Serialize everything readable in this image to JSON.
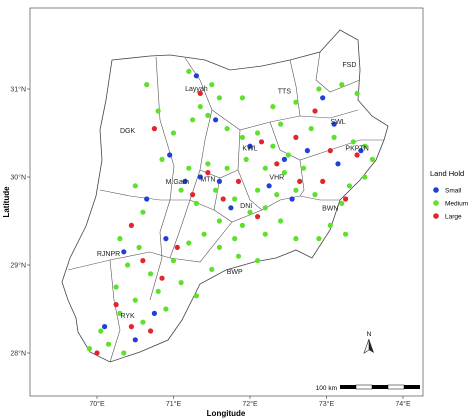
{
  "axes": {
    "x_title": "Longitude",
    "y_title": "Latitude",
    "x_ticks": [
      {
        "value": 70,
        "label": "70°E"
      },
      {
        "value": 71,
        "label": "71°E"
      },
      {
        "value": 72,
        "label": "72°E"
      },
      {
        "value": 73,
        "label": "73°E"
      },
      {
        "value": 74,
        "label": "74°E"
      }
    ],
    "y_ticks": [
      {
        "value": 28,
        "label": "28°N"
      },
      {
        "value": 29,
        "label": "29°N"
      },
      {
        "value": 30,
        "label": "30°N"
      },
      {
        "value": 31,
        "label": "31°N"
      }
    ]
  },
  "regions": [
    {
      "name": "FSD",
      "lon": 73.3,
      "lat": 31.25
    },
    {
      "name": "TTS",
      "lon": 72.45,
      "lat": 30.95
    },
    {
      "name": "Layyah",
      "lon": 71.3,
      "lat": 30.98
    },
    {
      "name": "SWL",
      "lon": 73.15,
      "lat": 30.6
    },
    {
      "name": "DGK",
      "lon": 70.4,
      "lat": 30.5
    },
    {
      "name": "KWL",
      "lon": 72.0,
      "lat": 30.3
    },
    {
      "name": "PKPTN",
      "lon": 73.4,
      "lat": 30.3
    },
    {
      "name": "M.Garh",
      "lon": 71.05,
      "lat": 29.92
    },
    {
      "name": "MTN",
      "lon": 71.45,
      "lat": 29.95
    },
    {
      "name": "VHR",
      "lon": 72.35,
      "lat": 29.97
    },
    {
      "name": "DNI",
      "lon": 71.95,
      "lat": 29.65
    },
    {
      "name": "BWN",
      "lon": 73.05,
      "lat": 29.62
    },
    {
      "name": "RJNPR",
      "lon": 70.15,
      "lat": 29.1
    },
    {
      "name": "BWP",
      "lon": 71.8,
      "lat": 28.9
    },
    {
      "name": "RYK",
      "lon": 70.4,
      "lat": 28.4
    }
  ],
  "legend": {
    "title": "Land Hold",
    "items": [
      {
        "label": "Small",
        "color": "#1f3fd6"
      },
      {
        "label": "Medium",
        "color": "#5ee02c"
      },
      {
        "label": "Large",
        "color": "#e0262c"
      }
    ]
  },
  "scale_bar": {
    "label": "100 km"
  },
  "north_arrow": {
    "label": "N"
  },
  "points": [
    [
      71.2,
      31.2,
      "m"
    ],
    [
      71.5,
      31.05,
      "m"
    ],
    [
      71.35,
      30.8,
      "m"
    ],
    [
      71.6,
      30.9,
      "m"
    ],
    [
      71.25,
      30.65,
      "m"
    ],
    [
      71.45,
      30.7,
      "m"
    ],
    [
      71.7,
      30.55,
      "m"
    ],
    [
      71.9,
      30.9,
      "m"
    ],
    [
      70.65,
      31.05,
      "m"
    ],
    [
      70.8,
      30.75,
      "m"
    ],
    [
      70.85,
      30.2,
      "m"
    ],
    [
      71.0,
      30.5,
      "m"
    ],
    [
      71.3,
      31.15,
      "s"
    ],
    [
      71.55,
      30.65,
      "s"
    ],
    [
      70.95,
      30.25,
      "s"
    ],
    [
      71.35,
      30.95,
      "l"
    ],
    [
      70.75,
      30.55,
      "l"
    ],
    [
      72.3,
      30.8,
      "m"
    ],
    [
      72.6,
      30.85,
      "m"
    ],
    [
      72.9,
      31.0,
      "m"
    ],
    [
      73.2,
      31.05,
      "m"
    ],
    [
      73.4,
      30.95,
      "m"
    ],
    [
      72.4,
      30.6,
      "m"
    ],
    [
      72.8,
      30.55,
      "m"
    ],
    [
      73.1,
      30.45,
      "m"
    ],
    [
      73.35,
      30.4,
      "m"
    ],
    [
      73.5,
      30.35,
      "m"
    ],
    [
      73.6,
      30.2,
      "m"
    ],
    [
      73.5,
      30.0,
      "m"
    ],
    [
      73.3,
      29.9,
      "m"
    ],
    [
      73.2,
      29.7,
      "m"
    ],
    [
      73.05,
      29.45,
      "m"
    ],
    [
      72.9,
      29.3,
      "m"
    ],
    [
      73.25,
      29.35,
      "m"
    ],
    [
      72.95,
      30.9,
      "s"
    ],
    [
      73.1,
      30.6,
      "s"
    ],
    [
      73.45,
      30.3,
      "s"
    ],
    [
      72.75,
      30.3,
      "s"
    ],
    [
      73.15,
      30.15,
      "s"
    ],
    [
      72.85,
      30.75,
      "l"
    ],
    [
      73.05,
      30.3,
      "l"
    ],
    [
      73.4,
      30.25,
      "l"
    ],
    [
      72.6,
      30.45,
      "l"
    ],
    [
      72.95,
      29.95,
      "l"
    ],
    [
      73.25,
      29.75,
      "l"
    ],
    [
      71.9,
      30.45,
      "m"
    ],
    [
      72.1,
      30.5,
      "m"
    ],
    [
      72.3,
      30.35,
      "m"
    ],
    [
      72.5,
      30.25,
      "m"
    ],
    [
      71.95,
      30.2,
      "m"
    ],
    [
      72.2,
      30.1,
      "m"
    ],
    [
      72.45,
      30.05,
      "m"
    ],
    [
      72.7,
      30.1,
      "m"
    ],
    [
      72.6,
      29.85,
      "m"
    ],
    [
      72.85,
      29.8,
      "m"
    ],
    [
      72.35,
      29.8,
      "m"
    ],
    [
      72.1,
      29.85,
      "m"
    ],
    [
      72.0,
      30.35,
      "s"
    ],
    [
      72.45,
      30.2,
      "s"
    ],
    [
      72.25,
      29.9,
      "s"
    ],
    [
      72.55,
      29.75,
      "s"
    ],
    [
      72.15,
      30.4,
      "l"
    ],
    [
      72.35,
      30.15,
      "l"
    ],
    [
      72.65,
      29.95,
      "l"
    ],
    [
      71.85,
      29.95,
      "l"
    ],
    [
      71.2,
      30.1,
      "m"
    ],
    [
      71.45,
      30.15,
      "m"
    ],
    [
      71.7,
      30.1,
      "m"
    ],
    [
      71.55,
      29.85,
      "m"
    ],
    [
      71.3,
      29.7,
      "m"
    ],
    [
      71.1,
      29.85,
      "m"
    ],
    [
      71.8,
      29.75,
      "m"
    ],
    [
      72.0,
      29.6,
      "m"
    ],
    [
      72.2,
      29.65,
      "m"
    ],
    [
      71.9,
      29.45,
      "m"
    ],
    [
      71.6,
      29.5,
      "m"
    ],
    [
      71.35,
      30.0,
      "s"
    ],
    [
      71.6,
      29.95,
      "s"
    ],
    [
      71.15,
      29.95,
      "s"
    ],
    [
      71.75,
      29.65,
      "s"
    ],
    [
      71.45,
      30.05,
      "l"
    ],
    [
      71.25,
      29.8,
      "l"
    ],
    [
      71.65,
      29.75,
      "l"
    ],
    [
      72.1,
      29.55,
      "l"
    ],
    [
      70.5,
      29.9,
      "m"
    ],
    [
      70.6,
      29.6,
      "m"
    ],
    [
      70.3,
      29.3,
      "m"
    ],
    [
      70.55,
      29.2,
      "m"
    ],
    [
      70.4,
      29.0,
      "m"
    ],
    [
      70.7,
      28.9,
      "m"
    ],
    [
      70.25,
      28.75,
      "m"
    ],
    [
      70.5,
      28.6,
      "m"
    ],
    [
      70.8,
      28.7,
      "m"
    ],
    [
      71.0,
      29.05,
      "m"
    ],
    [
      71.2,
      29.25,
      "m"
    ],
    [
      71.4,
      29.35,
      "m"
    ],
    [
      71.6,
      29.2,
      "m"
    ],
    [
      71.1,
      28.8,
      "m"
    ],
    [
      70.9,
      28.5,
      "m"
    ],
    [
      70.6,
      28.35,
      "m"
    ],
    [
      70.3,
      28.45,
      "m"
    ],
    [
      70.05,
      28.25,
      "m"
    ],
    [
      69.9,
      28.05,
      "m"
    ],
    [
      70.15,
      28.1,
      "m"
    ],
    [
      70.35,
      28.0,
      "m"
    ],
    [
      71.3,
      28.65,
      "m"
    ],
    [
      71.5,
      28.95,
      "m"
    ],
    [
      71.8,
      29.3,
      "m"
    ],
    [
      70.65,
      29.75,
      "s"
    ],
    [
      70.35,
      29.15,
      "s"
    ],
    [
      70.75,
      28.45,
      "s"
    ],
    [
      70.1,
      28.3,
      "s"
    ],
    [
      70.5,
      28.15,
      "s"
    ],
    [
      70.9,
      29.3,
      "s"
    ],
    [
      70.45,
      29.45,
      "l"
    ],
    [
      70.6,
      29.05,
      "l"
    ],
    [
      70.25,
      28.55,
      "l"
    ],
    [
      70.85,
      28.85,
      "l"
    ],
    [
      70.0,
      28.0,
      "l"
    ],
    [
      70.45,
      28.3,
      "l"
    ],
    [
      71.05,
      29.2,
      "l"
    ],
    [
      70.7,
      28.25,
      "l"
    ],
    [
      72.4,
      29.5,
      "m"
    ],
    [
      72.6,
      29.3,
      "m"
    ],
    [
      72.2,
      29.35,
      "m"
    ],
    [
      71.85,
      29.1,
      "m"
    ],
    [
      72.1,
      29.05,
      "m"
    ]
  ]
}
